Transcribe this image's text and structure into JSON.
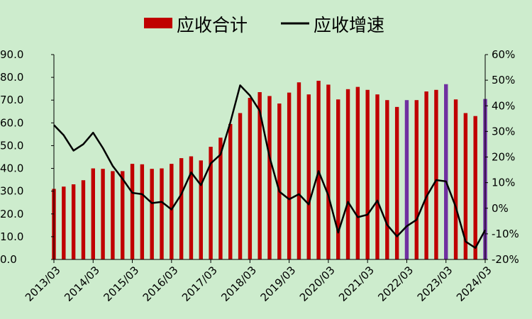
{
  "chart_data": {
    "type": "bar+line",
    "title": "",
    "legend": {
      "position": "top",
      "bar_label": "应收合计",
      "line_label": "应收增速"
    },
    "x_tick_labels": [
      "2013/03",
      "2014/03",
      "2015/03",
      "2016/03",
      "2017/03",
      "2018/03",
      "2019/03",
      "2020/03",
      "2021/03",
      "2022/03",
      "2023/03",
      "2024/03"
    ],
    "left_axis": {
      "min": 0,
      "max": 90,
      "step": 10,
      "tick_labels": [
        "0.0",
        "10.0",
        "20.0",
        "30.0",
        "40.0",
        "50.0",
        "60.0",
        "70.0",
        "80.0",
        "90.0"
      ]
    },
    "right_axis": {
      "min": -20,
      "max": 60,
      "step": 10,
      "tick_labels": [
        "-20%",
        "-10%",
        "0%",
        "10%",
        "20%",
        "30%",
        "40%",
        "50%",
        "60%"
      ]
    },
    "grid": false,
    "colors": {
      "background": "#cdeccd",
      "bar": "#c00000",
      "bar_highlight": "#7030a0",
      "line": "#000000"
    },
    "series": [
      {
        "name": "应收合计",
        "type": "bar",
        "axis": "left",
        "values": [
          31.0,
          32.0,
          33.0,
          34.8,
          40.0,
          39.8,
          38.8,
          38.8,
          42.0,
          41.8,
          39.8,
          40.0,
          42.0,
          44.5,
          45.3,
          43.5,
          49.5,
          53.5,
          59.5,
          64.3,
          71.0,
          73.5,
          71.8,
          68.5,
          73.3,
          77.8,
          72.5,
          78.5,
          76.8,
          70.3,
          74.8,
          75.8,
          74.5,
          72.5,
          70.0,
          67.0,
          70.0,
          70.0,
          73.8,
          74.5,
          77.0,
          70.3,
          64.3,
          63.0,
          70.5
        ],
        "highlight_indices": [
          36,
          40,
          44
        ]
      },
      {
        "name": "应收增速",
        "type": "line",
        "axis": "right",
        "values": [
          32.5,
          28.5,
          22.5,
          25.0,
          29.5,
          23.5,
          16.5,
          11.5,
          6.0,
          5.5,
          2.0,
          2.5,
          -0.5,
          5.5,
          14.0,
          9.0,
          17.5,
          21.0,
          33.5,
          48.0,
          44.0,
          38.0,
          20.0,
          6.5,
          3.5,
          5.5,
          1.5,
          14.5,
          5.0,
          -9.5,
          2.5,
          -3.5,
          -2.5,
          3.0,
          -6.5,
          -11.0,
          -7.0,
          -4.5,
          4.5,
          11.0,
          10.5,
          0.5,
          -13.0,
          -15.5,
          -8.5
        ]
      }
    ]
  }
}
